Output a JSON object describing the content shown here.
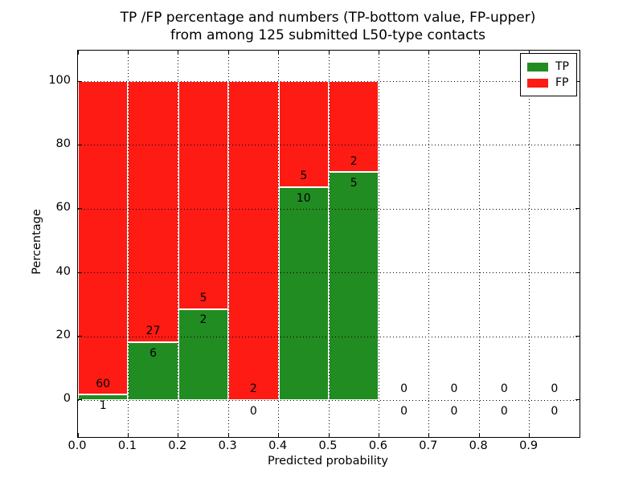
{
  "title": {
    "line1": "TP /FP percentage and numbers (TP-bottom value, FP-upper)",
    "line2": "from among 125 submitted L50-type contacts"
  },
  "axes": {
    "xlabel": "Predicted probability",
    "ylabel": "Percentage",
    "x_tick_labels": [
      "0.0",
      "0.1",
      "0.2",
      "0.3",
      "0.4",
      "0.5",
      "0.6",
      "0.7",
      "0.8",
      "0.9"
    ],
    "y_tick_labels": [
      "0",
      "20",
      "40",
      "60",
      "80",
      "100"
    ]
  },
  "legend": {
    "items": [
      {
        "label": "TP",
        "color": "#218c21"
      },
      {
        "label": "FP",
        "color": "#fd1b14"
      }
    ]
  },
  "chart_data": {
    "type": "bar",
    "stacked": true,
    "title": "TP /FP percentage and numbers (TP-bottom value, FP-upper) from among 125 submitted L50-type contacts",
    "xlabel": "Predicted probability",
    "ylabel": "Percentage",
    "total_contacts": 125,
    "x_bin_start": [
      0.0,
      0.1,
      0.2,
      0.3,
      0.4,
      0.5,
      0.6,
      0.7,
      0.8,
      0.9
    ],
    "bin_width": 0.1,
    "series": [
      {
        "name": "TP",
        "color": "#218c21",
        "counts": [
          1,
          6,
          2,
          0,
          10,
          5,
          0,
          0,
          0,
          0
        ]
      },
      {
        "name": "FP",
        "color": "#fd1b14",
        "counts": [
          60,
          27,
          5,
          2,
          5,
          2,
          0,
          0,
          0,
          0
        ]
      }
    ],
    "tp_percent_of_bin": [
      1.64,
      18.18,
      28.57,
      0.0,
      66.67,
      71.43,
      null,
      null,
      null,
      null
    ],
    "xlim": [
      0.0,
      1.0
    ],
    "ylim": [
      -11.6,
      109.6
    ],
    "x_ticks": [
      0.0,
      0.1,
      0.2,
      0.3,
      0.4,
      0.5,
      0.6,
      0.7,
      0.8,
      0.9
    ],
    "y_ticks": [
      0,
      20,
      40,
      60,
      80,
      100
    ],
    "grid": "dotted",
    "bar_edge_color": "#ffffff",
    "legend_position": "upper right"
  }
}
